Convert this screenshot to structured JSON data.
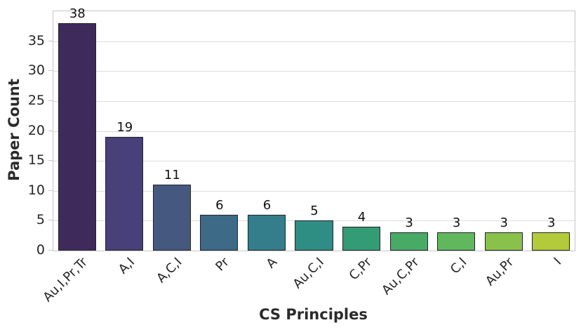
{
  "chart_data": {
    "type": "bar",
    "title": "",
    "xlabel": "CS Principles",
    "ylabel": "Paper Count",
    "categories": [
      "Au,I,Pr,Tr",
      "A,I",
      "A,C,I",
      "Pr",
      "A",
      "Au,C,I",
      "C,Pr",
      "Au,C,Pr",
      "C,I",
      "Au,Pr",
      "I"
    ],
    "values": [
      38,
      19,
      11,
      6,
      6,
      5,
      4,
      3,
      3,
      3,
      3
    ],
    "value_labels": [
      "38",
      "19",
      "11",
      "6",
      "6",
      "5",
      "4",
      "3",
      "3",
      "3",
      "3"
    ],
    "bar_colors": [
      "#3f2a5c",
      "#484078",
      "#45597e",
      "#3c6a87",
      "#347e8b",
      "#2f8e83",
      "#339c74",
      "#47ab66",
      "#60b75c",
      "#89c24a",
      "#b3ca3b"
    ],
    "bar_edge_color": "#23232b",
    "ylim": [
      0,
      40
    ],
    "yticks": [
      0,
      5,
      10,
      15,
      20,
      25,
      30,
      35
    ],
    "grid": "horizontal",
    "legend": "none",
    "x_tick_rotation_deg": 45
  }
}
